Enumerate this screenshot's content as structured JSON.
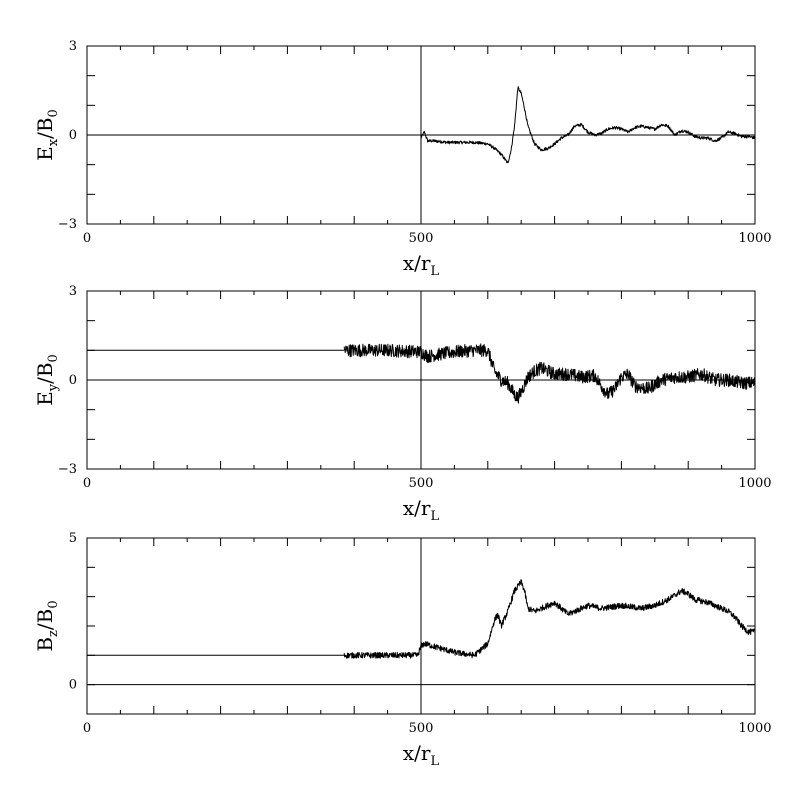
{
  "chart_data": [
    {
      "type": "line",
      "id": "ex",
      "ylabel": {
        "base": "E",
        "sub": "x",
        "slash": "/",
        "base2": "B",
        "sub2": "0"
      },
      "xlabel": {
        "base": "x",
        "slash": "/",
        "base2": "r",
        "sub2": "L"
      },
      "xlim": [
        0,
        1000
      ],
      "ylim": [
        -3,
        3
      ],
      "x_ticklabels": [
        "0",
        "500",
        "1000"
      ],
      "y_ticklabels": [
        "−3",
        "0",
        "3"
      ],
      "x_ticklabel_values": [
        0,
        500,
        1000
      ],
      "y_ticklabel_values": [
        -3,
        0,
        3
      ],
      "x_minor_step": 50,
      "y_minor_step": 1,
      "hlines": [
        0
      ],
      "vlines": [
        500
      ],
      "noise": 0.05,
      "series": [
        {
          "x": [
            500,
            505,
            510,
            520,
            540,
            560,
            580,
            600,
            610,
            620,
            625,
            630,
            635,
            640,
            645,
            650,
            655,
            660,
            670,
            680,
            690,
            700,
            710,
            720,
            730,
            740,
            750,
            760,
            770,
            780,
            790,
            800,
            810,
            820,
            830,
            840,
            850,
            860,
            870,
            880,
            890,
            900,
            910,
            920,
            930,
            940,
            950,
            960,
            970,
            980,
            990,
            1000
          ],
          "y": [
            -0.1,
            0.1,
            -0.2,
            -0.2,
            -0.25,
            -0.25,
            -0.25,
            -0.3,
            -0.45,
            -0.65,
            -0.8,
            -0.95,
            -0.5,
            0.3,
            1.6,
            1.4,
            0.9,
            0.3,
            -0.3,
            -0.5,
            -0.45,
            -0.3,
            -0.1,
            0.0,
            0.3,
            0.35,
            0.1,
            0.0,
            0.05,
            0.2,
            0.25,
            0.2,
            0.1,
            0.25,
            0.3,
            0.25,
            0.2,
            0.35,
            0.3,
            0.0,
            0.15,
            0.1,
            -0.05,
            -0.1,
            -0.1,
            -0.2,
            -0.1,
            0.1,
            0.05,
            -0.05,
            -0.05,
            -0.1
          ]
        }
      ]
    },
    {
      "type": "line",
      "id": "ey",
      "ylabel": {
        "base": "E",
        "sub": "y",
        "slash": "/",
        "base2": "B",
        "sub2": "0"
      },
      "xlabel": {
        "base": "x",
        "slash": "/",
        "base2": "r",
        "sub2": "L"
      },
      "xlim": [
        0,
        1000
      ],
      "ylim": [
        -3,
        3
      ],
      "x_ticklabels": [
        "0",
        "500",
        "1000"
      ],
      "y_ticklabels": [
        "−3",
        "0",
        "3"
      ],
      "x_ticklabel_values": [
        0,
        500,
        1000
      ],
      "y_ticklabel_values": [
        -3,
        0,
        3
      ],
      "x_minor_step": 50,
      "y_minor_step": 1,
      "hlines": [
        0
      ],
      "vlines": [
        500
      ],
      "noise": 0.22,
      "series": [
        {
          "x": [
            0,
            385
          ],
          "y": [
            1.0,
            1.0
          ],
          "noise": 0
        },
        {
          "x": [
            385,
            400,
            450,
            500,
            510,
            550,
            580,
            600,
            610,
            620,
            630,
            640,
            645,
            650,
            660,
            670,
            680,
            690,
            700,
            720,
            740,
            760,
            770,
            780,
            790,
            800,
            810,
            820,
            840,
            860,
            880,
            900,
            920,
            940,
            960,
            980,
            1000
          ],
          "y": [
            1.0,
            1.0,
            1.0,
            0.95,
            0.8,
            0.95,
            1.0,
            1.0,
            0.3,
            0.0,
            -0.1,
            -0.5,
            -0.6,
            -0.4,
            0.1,
            0.3,
            0.4,
            0.3,
            0.2,
            0.2,
            0.1,
            0.15,
            -0.2,
            -0.5,
            -0.3,
            0.1,
            0.2,
            -0.2,
            -0.3,
            0.0,
            0.1,
            0.1,
            0.2,
            0.0,
            0.0,
            -0.1,
            -0.1
          ]
        }
      ]
    },
    {
      "type": "line",
      "id": "bz",
      "ylabel": {
        "base": "B",
        "sub": "z",
        "slash": "/",
        "base2": "B",
        "sub2": "0"
      },
      "xlabel": {
        "base": "x",
        "slash": "/",
        "base2": "r",
        "sub2": "L"
      },
      "xlim": [
        0,
        1000
      ],
      "ylim": [
        -1,
        5
      ],
      "x_ticklabels": [
        "0",
        "500",
        "1000"
      ],
      "y_ticklabels": [
        "0",
        "5"
      ],
      "x_ticklabel_values": [
        0,
        500,
        1000
      ],
      "y_ticklabel_values": [
        0,
        5
      ],
      "x_minor_step": 50,
      "y_minor_step": 1,
      "hlines": [
        0
      ],
      "vlines": [
        500
      ],
      "noise": 0.1,
      "series": [
        {
          "x": [
            0,
            385
          ],
          "y": [
            1.0,
            1.0
          ],
          "noise": 0
        },
        {
          "x": [
            385,
            400,
            450,
            495,
            500,
            505,
            520,
            550,
            580,
            600,
            610,
            615,
            620,
            630,
            640,
            650,
            655,
            660,
            670,
            680,
            700,
            720,
            730,
            750,
            770,
            800,
            830,
            850,
            870,
            890,
            900,
            910,
            930,
            950,
            960,
            970,
            980,
            990,
            1000
          ],
          "y": [
            1.0,
            1.0,
            1.0,
            1.0,
            1.3,
            1.4,
            1.3,
            1.1,
            1.0,
            1.4,
            2.2,
            2.4,
            2.0,
            2.5,
            3.2,
            3.5,
            3.2,
            2.6,
            2.5,
            2.6,
            2.8,
            2.4,
            2.5,
            2.7,
            2.6,
            2.7,
            2.6,
            2.7,
            2.9,
            3.2,
            3.1,
            2.9,
            2.8,
            2.6,
            2.5,
            2.3,
            2.0,
            1.8,
            1.8
          ]
        }
      ]
    }
  ]
}
